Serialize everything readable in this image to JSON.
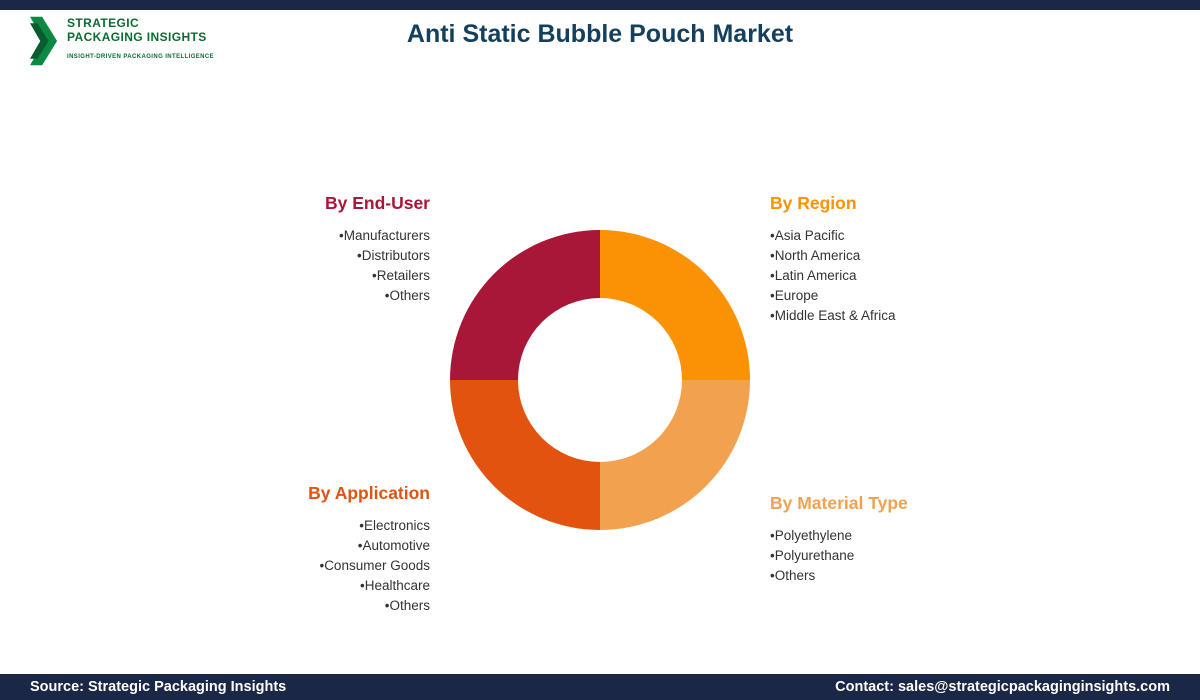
{
  "page": {
    "title": "Anti Static Bubble Pouch Market"
  },
  "colors": {
    "navy": "#1b2747",
    "title": "#15405d"
  },
  "logo": {
    "line1": "STRATEGIC",
    "line2": "PACKAGING INSIGHTS",
    "tagline": "INSIGHT-DRIVEN PACKAGING INTELLIGENCE",
    "color": "#0b6b33"
  },
  "chart_data": {
    "type": "pie",
    "title": "Anti Static Bubble Pouch Market segmentation donut",
    "segments": [
      {
        "label": "By Region",
        "value": 25,
        "color": "#FB9104",
        "position": "top-right"
      },
      {
        "label": "By Material Type",
        "value": 25,
        "color": "#F2A24E",
        "position": "bottom-right"
      },
      {
        "label": "By Application",
        "value": 25,
        "color": "#E2530F",
        "position": "bottom-left"
      },
      {
        "label": "By End-User",
        "value": 25,
        "color": "#A81638",
        "position": "top-left"
      }
    ],
    "inner_hole_ratio": 0.55,
    "legend_position": "around-chart"
  },
  "segments": {
    "end_user": {
      "heading": "By End-User",
      "color": "#A81638",
      "items": [
        "Manufacturers",
        "Distributors",
        "Retailers",
        "Others"
      ]
    },
    "region": {
      "heading": "By Region",
      "color": "#FB9104",
      "items": [
        "Asia Pacific",
        "North America",
        "Latin America",
        "Europe",
        "Middle East & Africa"
      ]
    },
    "application": {
      "heading": "By Application",
      "color": "#E2530F",
      "items": [
        "Electronics",
        "Automotive",
        "Consumer Goods",
        "Healthcare",
        "Others"
      ]
    },
    "material_type": {
      "heading": "By Material Type",
      "color": "#F2A24E",
      "items": [
        "Polyethylene",
        "Polyurethane",
        "Others"
      ]
    }
  },
  "footer": {
    "source": "Source: Strategic Packaging Insights",
    "contact": "Contact: sales@strategicpackaginginsights.com"
  }
}
